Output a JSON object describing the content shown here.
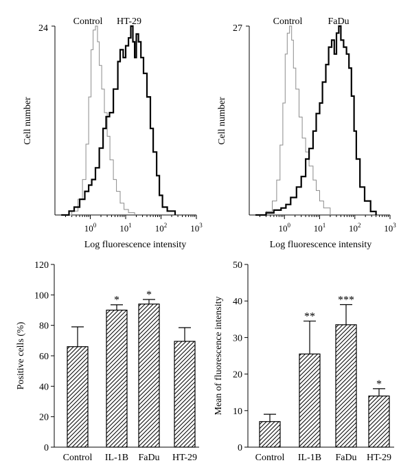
{
  "chart_data": [
    {
      "type": "area",
      "panel": "top-left",
      "ylabel": "Cell number",
      "xlabel": "Log fluorescence intensity",
      "y_max_label": "24",
      "ylim": [
        0,
        24
      ],
      "xscale": "log",
      "xlim": [
        0.1,
        1000
      ],
      "x_ticks": [
        {
          "base": "10",
          "exp": "0"
        },
        {
          "base": "10",
          "exp": "1"
        },
        {
          "base": "10",
          "exp": "2"
        },
        {
          "base": "10",
          "exp": "3"
        }
      ],
      "series": [
        {
          "name": "Control",
          "style": "thin-gray",
          "points": [
            [
              0.15,
              0
            ],
            [
              0.3,
              0.5
            ],
            [
              0.45,
              2
            ],
            [
              0.6,
              4.5
            ],
            [
              0.75,
              9
            ],
            [
              0.9,
              15
            ],
            [
              1.05,
              21
            ],
            [
              1.2,
              23.5
            ],
            [
              1.4,
              24
            ],
            [
              1.6,
              22
            ],
            [
              1.8,
              19
            ],
            [
              2.1,
              16
            ],
            [
              2.5,
              13
            ],
            [
              3,
              10
            ],
            [
              3.6,
              7
            ],
            [
              4.5,
              4.5
            ],
            [
              5.5,
              3
            ],
            [
              7,
              1.5
            ],
            [
              9,
              0.7
            ],
            [
              12,
              0.3
            ],
            [
              18,
              0
            ]
          ]
        },
        {
          "name": "HT-29",
          "style": "thick-black",
          "points": [
            [
              0.15,
              0
            ],
            [
              0.25,
              0.5
            ],
            [
              0.35,
              1
            ],
            [
              0.5,
              2
            ],
            [
              0.7,
              3
            ],
            [
              0.9,
              3.8
            ],
            [
              1.1,
              4.5
            ],
            [
              1.4,
              6
            ],
            [
              1.8,
              8.5
            ],
            [
              2.3,
              11
            ],
            [
              2.8,
              12.5
            ],
            [
              3.5,
              13
            ],
            [
              4.5,
              16
            ],
            [
              6,
              19.5
            ],
            [
              7,
              21
            ],
            [
              8.5,
              20
            ],
            [
              10,
              21.5
            ],
            [
              12,
              22.5
            ],
            [
              14,
              24
            ],
            [
              16,
              22
            ],
            [
              18,
              20
            ],
            [
              20,
              23
            ],
            [
              23,
              22
            ],
            [
              27,
              20
            ],
            [
              32,
              18
            ],
            [
              40,
              15
            ],
            [
              50,
              11
            ],
            [
              60,
              8
            ],
            [
              75,
              5
            ],
            [
              90,
              2.5
            ],
            [
              110,
              1
            ],
            [
              150,
              0.5
            ],
            [
              250,
              0
            ]
          ]
        }
      ]
    },
    {
      "type": "area",
      "panel": "top-right",
      "ylabel": "Cell number",
      "xlabel": "Log fluorescence intensity",
      "y_max_label": "27",
      "ylim": [
        0,
        27
      ],
      "xscale": "log",
      "xlim": [
        0.1,
        1000
      ],
      "x_ticks": [
        {
          "base": "10",
          "exp": "0"
        },
        {
          "base": "10",
          "exp": "1"
        },
        {
          "base": "10",
          "exp": "2"
        },
        {
          "base": "10",
          "exp": "3"
        }
      ],
      "series": [
        {
          "name": "Control",
          "style": "thin-gray",
          "points": [
            [
              0.15,
              0
            ],
            [
              0.3,
              0.5
            ],
            [
              0.45,
              2
            ],
            [
              0.6,
              5
            ],
            [
              0.75,
              10
            ],
            [
              0.9,
              16
            ],
            [
              1.05,
              23
            ],
            [
              1.2,
              26
            ],
            [
              1.4,
              27
            ],
            [
              1.6,
              25
            ],
            [
              1.8,
              21
            ],
            [
              2.1,
              18
            ],
            [
              2.6,
              14
            ],
            [
              3.2,
              11
            ],
            [
              4,
              9
            ],
            [
              5,
              7
            ],
            [
              6.5,
              5
            ],
            [
              8,
              3.5
            ],
            [
              10,
              2
            ],
            [
              13,
              1
            ],
            [
              20,
              0
            ]
          ]
        },
        {
          "name": "FaDu",
          "style": "thick-black",
          "points": [
            [
              0.15,
              0
            ],
            [
              0.3,
              0.3
            ],
            [
              0.5,
              0.7
            ],
            [
              0.8,
              1
            ],
            [
              1.1,
              1.5
            ],
            [
              1.5,
              2.5
            ],
            [
              2.2,
              4
            ],
            [
              3,
              5.5
            ],
            [
              4,
              8
            ],
            [
              5,
              9.5
            ],
            [
              6.5,
              12
            ],
            [
              8,
              14.5
            ],
            [
              10,
              16
            ],
            [
              12,
              19
            ],
            [
              15,
              21.5
            ],
            [
              18,
              24
            ],
            [
              22,
              25
            ],
            [
              26,
              23
            ],
            [
              30,
              26
            ],
            [
              35,
              27
            ],
            [
              40,
              25
            ],
            [
              48,
              24
            ],
            [
              58,
              23
            ],
            [
              68,
              21
            ],
            [
              80,
              17
            ],
            [
              95,
              12
            ],
            [
              110,
              8
            ],
            [
              140,
              4
            ],
            [
              190,
              2
            ],
            [
              280,
              0.5
            ],
            [
              400,
              0
            ]
          ]
        }
      ]
    },
    {
      "type": "bar",
      "panel": "bottom-left",
      "ylabel": "Positive cells (%)",
      "ylim": [
        0,
        120
      ],
      "yticks": [
        "0",
        "20",
        "40",
        "60",
        "80",
        "100",
        "120"
      ],
      "categories": [
        "Control",
        "IL-1B",
        "FaDu",
        "HT-29"
      ],
      "values": [
        66,
        90,
        94,
        69.5
      ],
      "errors": [
        13,
        3.5,
        3,
        9
      ],
      "annotations": [
        "",
        "*",
        "*",
        ""
      ]
    },
    {
      "type": "bar",
      "panel": "bottom-right",
      "ylabel": "Mean of fluorescence intensity",
      "ylim": [
        0,
        50
      ],
      "yticks": [
        "0",
        "10",
        "20",
        "30",
        "40",
        "50"
      ],
      "categories": [
        "Control",
        "IL-1B",
        "FaDu",
        "HT-29"
      ],
      "values": [
        7,
        25.5,
        33.5,
        14
      ],
      "errors": [
        2,
        9,
        5.5,
        2
      ],
      "annotations": [
        "",
        "**",
        "***",
        "*"
      ]
    }
  ]
}
